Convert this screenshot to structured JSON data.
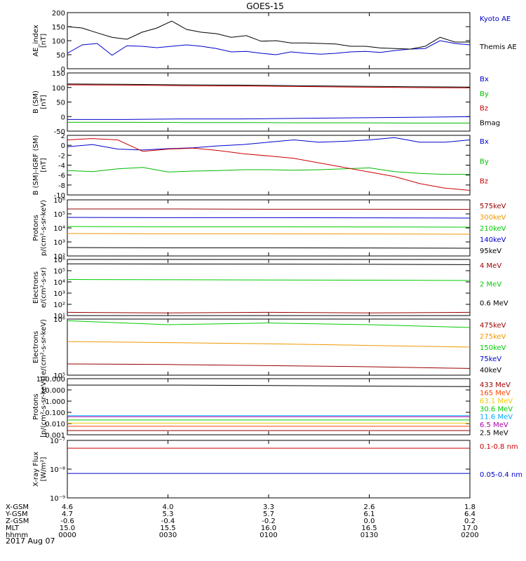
{
  "title": "GOES-15",
  "date_label": "2017 Aug 07",
  "ephemeris": {
    "labels": [
      "X-GSM",
      "Y-GSM",
      "Z-GSM",
      "MLT",
      "hhmm"
    ],
    "columns": [
      [
        "4.6",
        "4.7",
        "-0.6",
        "15.0",
        "0000"
      ],
      [
        "4.0",
        "5.3",
        "-0.4",
        "15.5",
        "0030"
      ],
      [
        "3.3",
        "5.7",
        "-0.2",
        "16.0",
        "0100"
      ],
      [
        "2.6",
        "6.1",
        "0.0",
        "16.5",
        "0130"
      ],
      [
        "1.8",
        "6.4",
        "0.2",
        "17.0",
        "0200"
      ]
    ]
  },
  "chart_data": [
    {
      "type": "line",
      "ylabel": "AE_index\n[nT]",
      "ylim": [
        0,
        200
      ],
      "yticks": [
        "0",
        "50",
        "100",
        "150",
        "200"
      ],
      "series": [
        {
          "name": "Kyoto AE",
          "color": "#0000cc",
          "values": [
            55,
            85,
            90,
            48,
            82,
            80,
            75,
            80,
            85,
            80,
            72,
            60,
            62,
            55,
            50,
            60,
            55,
            52,
            55,
            60,
            62,
            58,
            65,
            70,
            72,
            100,
            90,
            85
          ]
        },
        {
          "name": "Themis AE",
          "color": "#000000",
          "values": [
            150,
            145,
            128,
            112,
            105,
            130,
            145,
            170,
            140,
            130,
            125,
            112,
            118,
            98,
            100,
            92,
            92,
            90,
            88,
            80,
            80,
            74,
            72,
            70,
            80,
            112,
            95,
            95
          ]
        }
      ]
    },
    {
      "type": "line",
      "ylabel": "B (SM)\n[nT]",
      "ylim": [
        -60,
        150
      ],
      "yticks": [
        "-50",
        "0",
        "50",
        "100",
        "150"
      ],
      "series": [
        {
          "name": "Bx",
          "color": "#0000cc",
          "values": [
            -18,
            -18,
            -16,
            -16,
            -14,
            -12,
            -10,
            -8
          ]
        },
        {
          "name": "By",
          "color": "#00bb00",
          "values": [
            -28,
            -28,
            -29,
            -29,
            -30,
            -30,
            -31,
            -31
          ]
        },
        {
          "name": "Bz",
          "color": "#cc0000",
          "values": [
            107,
            106,
            104,
            103,
            101,
            99,
            97,
            96
          ]
        },
        {
          "name": "Bmag",
          "color": "#000000",
          "values": [
            110,
            109,
            107,
            106,
            104,
            102,
            100,
            99
          ]
        }
      ]
    },
    {
      "type": "line",
      "ylabel": "B (SM)-IGRF (SM)\n[nT]",
      "ylim": [
        -10.5,
        2.5
      ],
      "yticks": [
        "-10",
        "-8",
        "-6",
        "-4",
        "-2",
        "0",
        "2"
      ],
      "series": [
        {
          "name": "Bx",
          "color": "#0000cc",
          "values": [
            0.0,
            0.5,
            -0.5,
            -0.7,
            -0.4,
            -0.2,
            0.2,
            0.5,
            1.0,
            1.5,
            1.0,
            1.2,
            1.5,
            2.0,
            1.0,
            1.0,
            1.5
          ]
        },
        {
          "name": "By",
          "color": "#00bb00",
          "values": [
            -5.2,
            -5.4,
            -4.8,
            -4.5,
            -5.5,
            -5.3,
            -5.2,
            -5.0,
            -5.0,
            -5.1,
            -5.0,
            -4.8,
            -4.6,
            -5.4,
            -5.8,
            -6.0,
            -6.0
          ]
        },
        {
          "name": "Bz",
          "color": "#cc0000",
          "values": [
            1.5,
            1.8,
            1.5,
            -1.0,
            -0.5,
            -0.3,
            -0.8,
            -1.5,
            -2.0,
            -2.5,
            -3.5,
            -4.5,
            -5.5,
            -6.5,
            -8.0,
            -9.0,
            -9.5
          ]
        }
      ]
    },
    {
      "type": "line",
      "ylabel": "Protons\np/(cm²-s-sr-keV)",
      "log": true,
      "ylim": [
        2,
        6
      ],
      "yticks": [
        "10²",
        "10³",
        "10⁴",
        "10⁵",
        "10⁶"
      ],
      "series": [
        {
          "name": "575keV",
          "color": "#990000",
          "values": [
            5.35,
            5.35,
            5.33,
            5.33,
            5.32
          ]
        },
        {
          "name": "300keV",
          "color": "#ee9900",
          "values": [
            3.6,
            3.58,
            3.58,
            3.57,
            3.55
          ]
        },
        {
          "name": "210keV",
          "color": "#00cc00",
          "values": [
            4.1,
            4.08,
            4.08,
            4.07,
            4.05
          ]
        },
        {
          "name": "140keV",
          "color": "#0000cc",
          "values": [
            4.75,
            4.73,
            4.73,
            4.72,
            4.7
          ]
        },
        {
          "name": "95keV",
          "color": "#000000",
          "values": [
            2.6,
            2.58,
            2.58,
            2.57,
            2.55
          ]
        }
      ]
    },
    {
      "type": "line",
      "ylabel": "Electrons\ne/(cm²-s-sr)",
      "log": true,
      "ylim": [
        0.8,
        6
      ],
      "yticks": [
        "10¹",
        "10²",
        "10³",
        "10⁴",
        "10⁵",
        "10⁶"
      ],
      "series": [
        {
          "name": "4 MeV",
          "color": "#990000",
          "values": [
            1.1,
            1.05,
            1.1,
            1.05,
            1.1
          ]
        },
        {
          "name": "2 MeV",
          "color": "#00cc00",
          "values": [
            4.15,
            4.12,
            4.1,
            4.08,
            4.05
          ]
        },
        {
          "name": "0.6 MeV",
          "color": "#000000",
          "values": [
            5.6,
            5.58,
            5.57,
            5.55,
            5.52
          ]
        }
      ]
    },
    {
      "type": "line",
      "ylabel": "Electrons\ne/(cm²-s-sr-keV)",
      "log": true,
      "ylim": [
        5,
        6
      ],
      "yticks": [
        "10⁵",
        "10⁶"
      ],
      "series": [
        {
          "name": "475keV",
          "color": "#990000",
          "values": [
            5.2,
            5.19,
            5.17,
            5.15,
            5.12
          ]
        },
        {
          "name": "275keV",
          "color": "#ee9900",
          "values": [
            5.6,
            5.58,
            5.56,
            5.53,
            5.5
          ]
        },
        {
          "name": "150keV",
          "color": "#00cc00",
          "values": [
            5.97,
            5.9,
            5.93,
            5.9,
            5.85
          ]
        },
        {
          "name": "75keV",
          "color": "#0000cc",
          "values": []
        },
        {
          "name": "40keV",
          "color": "#000000",
          "values": []
        }
      ]
    },
    {
      "type": "line",
      "ylabel": "Protons\n[p/(cm²-s-sr-keV)]",
      "log": true,
      "ylim": [
        -3,
        2.3
      ],
      "yticks": [
        "0.001",
        "0.010",
        "0.100",
        "1.000",
        "10.000",
        "100.000"
      ],
      "series": [
        {
          "name": "433 MeV",
          "color": "#990000",
          "values": [
            -2.6,
            -2.6,
            -2.6,
            -2.6,
            -2.6
          ]
        },
        {
          "name": "165 MeV",
          "color": "#ff4400",
          "values": [
            -2.2,
            -2.2,
            -2.2,
            -2.2,
            -2.2
          ]
        },
        {
          "name": "63.1 MeV",
          "color": "#eecc00",
          "values": [
            -1.9,
            -1.9,
            -1.9,
            -1.9,
            -1.9
          ]
        },
        {
          "name": "30.6 MeV",
          "color": "#00cc00",
          "values": [
            -1.6,
            -1.6,
            -1.6,
            -1.6,
            -1.6
          ]
        },
        {
          "name": "11.6 MeV",
          "color": "#00aaff",
          "values": [
            -1.2,
            -1.2,
            -1.2,
            -1.2,
            -1.2
          ]
        },
        {
          "name": "6.5 MeV",
          "color": "#aa00aa",
          "values": [
            -1.3,
            -1.3,
            -1.3,
            -1.3,
            -1.3
          ]
        },
        {
          "name": "2.5 MeV",
          "color": "#000000",
          "values": [
            1.7,
            1.7,
            1.65,
            1.6,
            1.55
          ]
        }
      ]
    },
    {
      "type": "line",
      "ylabel": "X-ray Flux\n[W/m²]",
      "log": true,
      "ylim": [
        -9,
        -7
      ],
      "yticks": [
        "10⁻⁹",
        "10⁻⁸",
        "10⁻⁷"
      ],
      "series": [
        {
          "name": "0.1-0.8 nm",
          "color": "#cc0000",
          "values": [
            -7.27,
            -7.27,
            -7.27,
            -7.27,
            -7.27
          ]
        },
        {
          "name": "0.05-0.4 nm",
          "color": "#0000cc",
          "values": [
            -8.15,
            -8.15,
            -8.15,
            -8.15,
            -8.15
          ]
        }
      ]
    }
  ]
}
